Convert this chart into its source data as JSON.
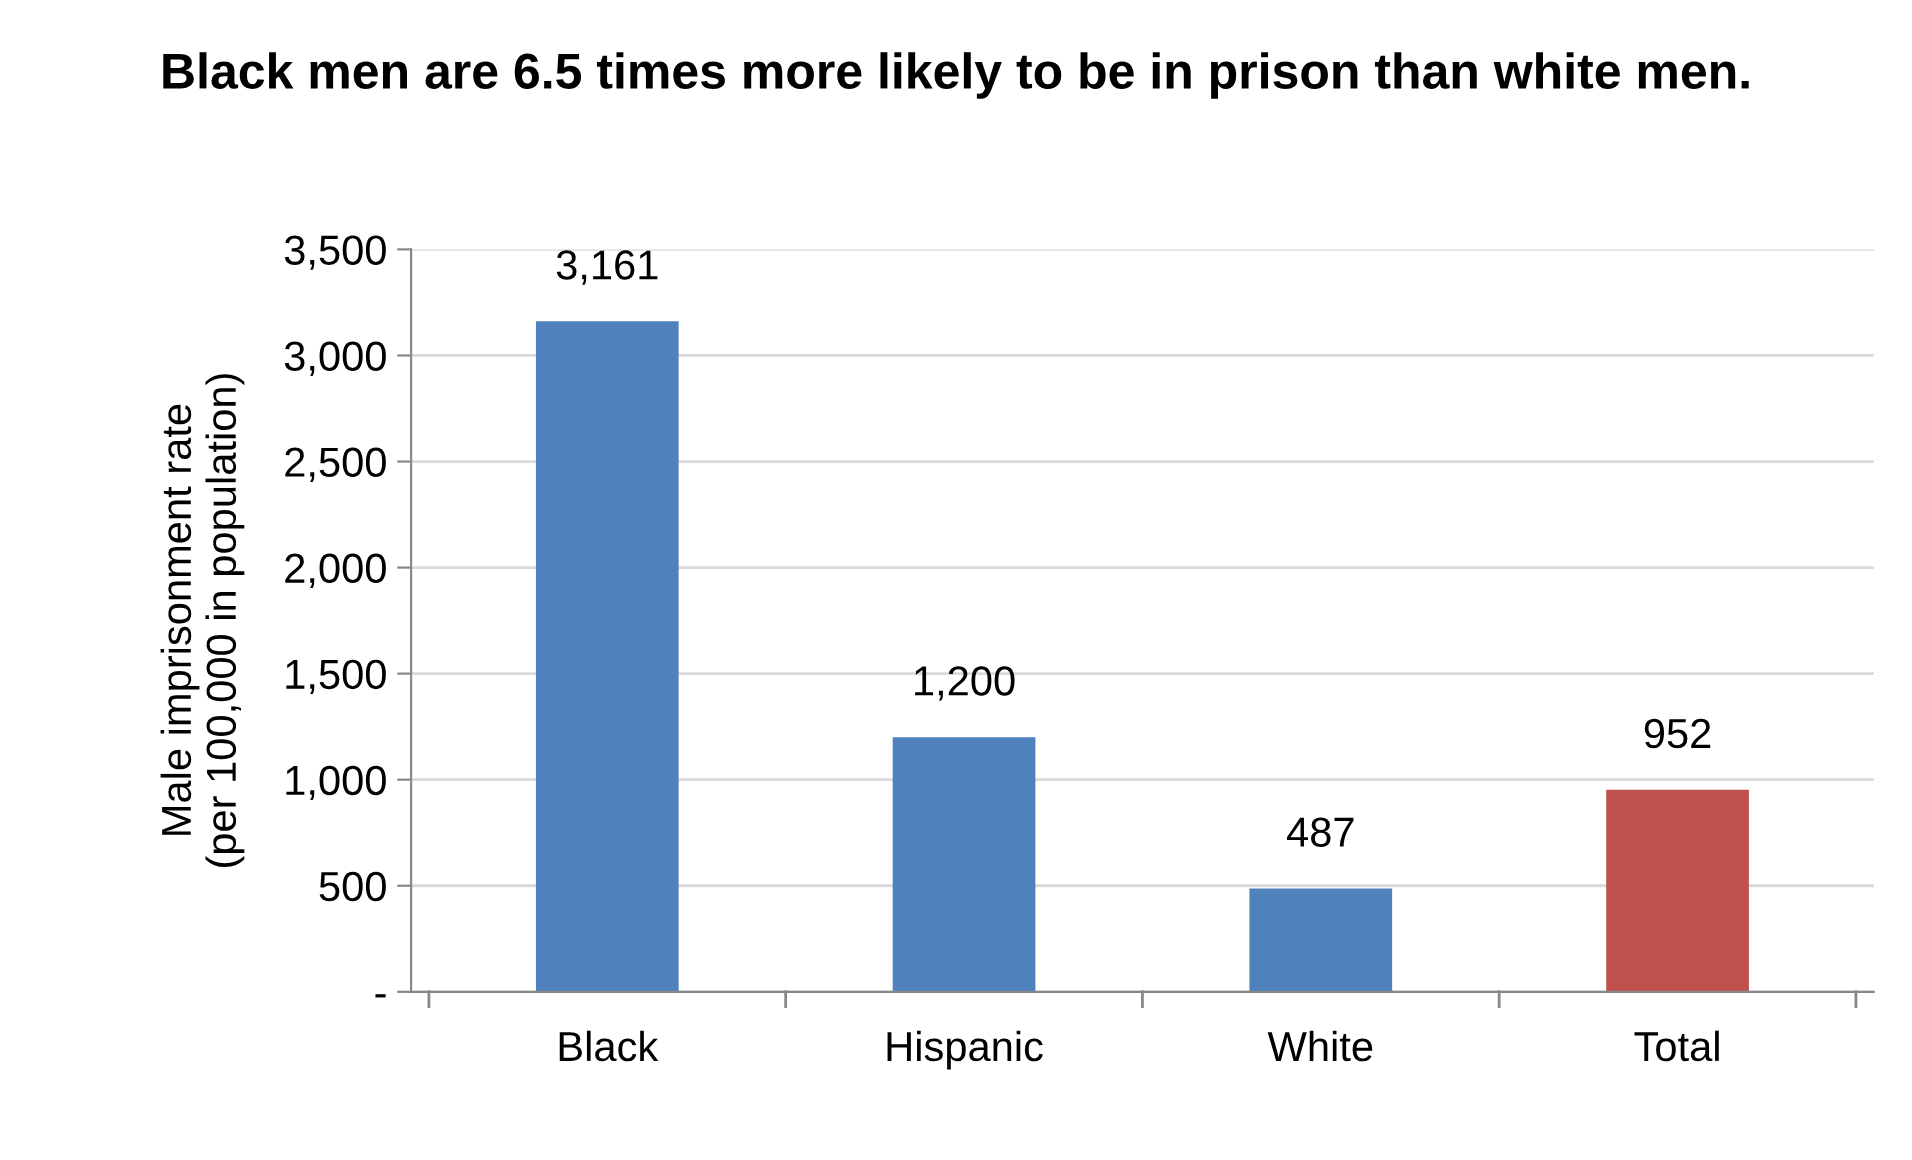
{
  "chart_data": {
    "type": "bar",
    "title": "Black men are 6.5 times more likely to be in prison than white men.",
    "ylabel": "Male imprisonment rate\n(per 100,000 in population)",
    "categories": [
      "Black",
      "Hispanic",
      "White",
      "Total"
    ],
    "values": [
      3161,
      1200,
      487,
      952
    ],
    "colors": [
      "#4f81bd",
      "#4f81bd",
      "#4f81bd",
      "#c0504d"
    ],
    "value_labels": [
      "3,161",
      "1,200",
      "487",
      "952"
    ],
    "ylim": [
      0,
      3500
    ],
    "yticks": [
      {
        "value": 0,
        "label": "-"
      },
      {
        "value": 500,
        "label": "500"
      },
      {
        "value": 1000,
        "label": "1,000"
      },
      {
        "value": 1500,
        "label": "1,500"
      },
      {
        "value": 2000,
        "label": "2,000"
      },
      {
        "value": 2500,
        "label": "2,500"
      },
      {
        "value": 3000,
        "label": "3,000"
      },
      {
        "value": 3500,
        "label": "3,500"
      }
    ],
    "grid": "y",
    "legend": false
  }
}
